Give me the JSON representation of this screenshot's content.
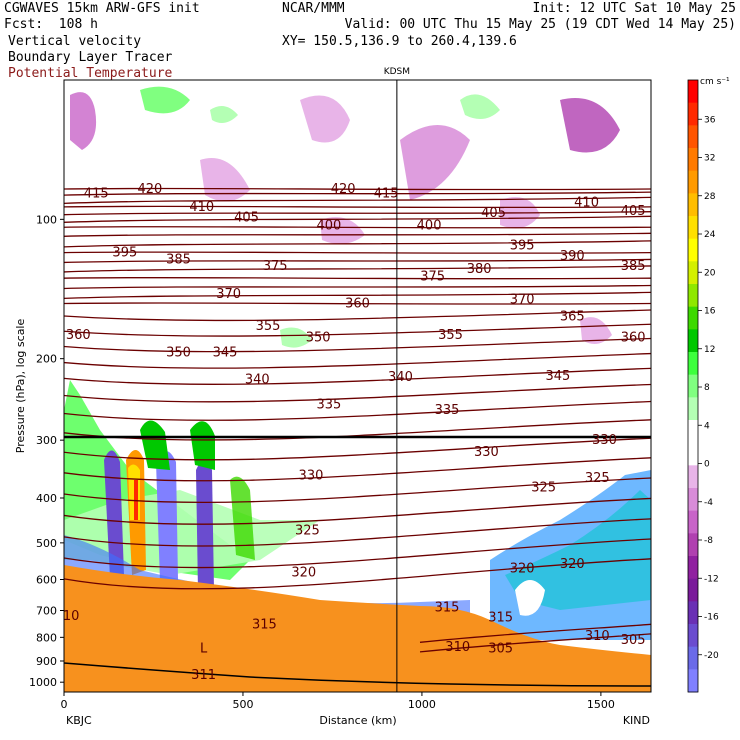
{
  "header": {
    "left_line1": "CGWAVES 15km ARW-GFS init",
    "left_line2": "Fcst:  108 h",
    "center_line1": "NCAR/MMM",
    "init": "Init: 12 UTC Sat 10 May 25",
    "valid": "Valid: 00 UTC Thu 15 May 25 (19 CDT Wed 14 May 25)",
    "xy": "XY= 150.5,136.9 to 260.4,139.6",
    "field1": "Vertical velocity",
    "field2": "Boundary Layer Tracer",
    "field3": "Potential Temperature"
  },
  "colors": {
    "theta": "#6b0000",
    "terrain": "#f7911e",
    "marker_line": "#000000"
  },
  "chart_data": {
    "type": "heatmap",
    "xlabel": "Distance (km)",
    "ylabel": "Pressure (hPa), log scale",
    "x_ticks": [
      "0",
      "500",
      "1000",
      "1500"
    ],
    "y_ticks": [
      "100",
      "200",
      "300",
      "400",
      "500",
      "600",
      "700",
      "800",
      "900",
      "1000"
    ],
    "xlim": [
      0,
      1640
    ],
    "ylim": [
      1050,
      50
    ],
    "y_scale": "log",
    "left_endpoint": "KBJC",
    "right_endpoint": "KIND",
    "marker_label": "KDSM",
    "marker_km": 930,
    "colorbar": {
      "unit": "cm s⁻¹",
      "ticks": [
        "36",
        "32",
        "28",
        "24",
        "20",
        "16",
        "12",
        "8",
        "4",
        "0",
        "-4",
        "-8",
        "-12",
        "-16",
        "-20"
      ],
      "colors": [
        "#ff0000",
        "#ff2a00",
        "#ff5500",
        "#ff7a00",
        "#ff9a00",
        "#ffbd00",
        "#ffe000",
        "#ffff00",
        "#d4f000",
        "#8fe800",
        "#3dd900",
        "#00c800",
        "#3dff3d",
        "#80ff80",
        "#b4ffb4",
        "#ffffff",
        "#ffffff",
        "#e8b4e8",
        "#d88cd8",
        "#c864c8",
        "#b040b0",
        "#9020a0",
        "#7a1a9a",
        "#6a30b4",
        "#6a4ccf",
        "#6a6ae8",
        "#8080ff"
      ]
    },
    "theta_labels": [
      {
        "t": "415",
        "x": 90,
        "p": 88
      },
      {
        "t": "420",
        "x": 240,
        "p": 86
      },
      {
        "t": "410",
        "x": 385,
        "p": 94
      },
      {
        "t": "405",
        "x": 510,
        "p": 99
      },
      {
        "t": "420",
        "x": 780,
        "p": 86
      },
      {
        "t": "415",
        "x": 900,
        "p": 88
      },
      {
        "t": "400",
        "x": 740,
        "p": 103
      },
      {
        "t": "400",
        "x": 1020,
        "p": 103
      },
      {
        "t": "405",
        "x": 1200,
        "p": 97
      },
      {
        "t": "410",
        "x": 1460,
        "p": 92
      },
      {
        "t": "405",
        "x": 1590,
        "p": 96
      },
      {
        "t": "395",
        "x": 170,
        "p": 118
      },
      {
        "t": "385",
        "x": 320,
        "p": 122
      },
      {
        "t": "375",
        "x": 590,
        "p": 126
      },
      {
        "t": "375",
        "x": 1030,
        "p": 133
      },
      {
        "t": "380",
        "x": 1160,
        "p": 128
      },
      {
        "t": "395",
        "x": 1280,
        "p": 114
      },
      {
        "t": "390",
        "x": 1420,
        "p": 120
      },
      {
        "t": "385",
        "x": 1590,
        "p": 126
      },
      {
        "t": "370",
        "x": 460,
        "p": 145
      },
      {
        "t": "370",
        "x": 1280,
        "p": 149
      },
      {
        "t": "360",
        "x": 820,
        "p": 152
      },
      {
        "t": "360",
        "x": 40,
        "p": 178
      },
      {
        "t": "355",
        "x": 570,
        "p": 170
      },
      {
        "t": "350",
        "x": 710,
        "p": 180
      },
      {
        "t": "350",
        "x": 320,
        "p": 194
      },
      {
        "t": "345",
        "x": 450,
        "p": 194
      },
      {
        "t": "355",
        "x": 1080,
        "p": 178
      },
      {
        "t": "365",
        "x": 1420,
        "p": 162
      },
      {
        "t": "360",
        "x": 1590,
        "p": 180
      },
      {
        "t": "340",
        "x": 540,
        "p": 222
      },
      {
        "t": "340",
        "x": 940,
        "p": 219
      },
      {
        "t": "345",
        "x": 1380,
        "p": 218
      },
      {
        "t": "335",
        "x": 740,
        "p": 251
      },
      {
        "t": "335",
        "x": 1070,
        "p": 258
      },
      {
        "t": "330",
        "x": 1180,
        "p": 318
      },
      {
        "t": "330",
        "x": 690,
        "p": 358
      },
      {
        "t": "330",
        "x": 1510,
        "p": 300
      },
      {
        "t": "325",
        "x": 1340,
        "p": 380
      },
      {
        "t": "325",
        "x": 1490,
        "p": 362
      },
      {
        "t": "325",
        "x": 680,
        "p": 470
      },
      {
        "t": "320",
        "x": 670,
        "p": 580
      },
      {
        "t": "320",
        "x": 1280,
        "p": 568
      },
      {
        "t": "320",
        "x": 1420,
        "p": 556
      },
      {
        "t": "315",
        "x": 1070,
        "p": 690
      },
      {
        "t": "315",
        "x": 1220,
        "p": 725
      },
      {
        "t": "315",
        "x": 560,
        "p": 750
      },
      {
        "t": "310",
        "x": 1490,
        "p": 795
      },
      {
        "t": "310",
        "x": 1100,
        "p": 840
      },
      {
        "t": "305",
        "x": 1220,
        "p": 845
      },
      {
        "t": "305",
        "x": 1590,
        "p": 810
      },
      {
        "t": "311",
        "x": 390,
        "p": 965
      },
      {
        "t": "L",
        "x": 390,
        "p": 845
      },
      {
        "t": "10",
        "x": 20,
        "p": 720
      }
    ]
  }
}
